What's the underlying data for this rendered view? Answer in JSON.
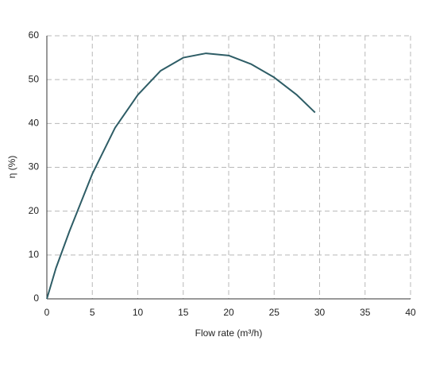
{
  "chart_data": {
    "type": "line",
    "x": [
      0,
      1,
      2.5,
      5,
      7.5,
      10,
      12.5,
      15,
      17.5,
      20,
      22.5,
      25,
      27.5,
      29.5
    ],
    "values": [
      0,
      7,
      15.5,
      28.5,
      39,
      46.5,
      52,
      55,
      56,
      55.5,
      53.5,
      50.5,
      46.5,
      42.5
    ],
    "color": "#2e5d66",
    "xlabel": "Flow rate (m³/h)",
    "ylabel": "η (%)",
    "xlim": [
      0,
      40
    ],
    "xticks": [
      0,
      5,
      10,
      15,
      20,
      25,
      30,
      35,
      40
    ],
    "ylim": [
      0,
      60
    ],
    "yticks": [
      0,
      10,
      20,
      30,
      40,
      50,
      60
    ],
    "grid": true
  }
}
